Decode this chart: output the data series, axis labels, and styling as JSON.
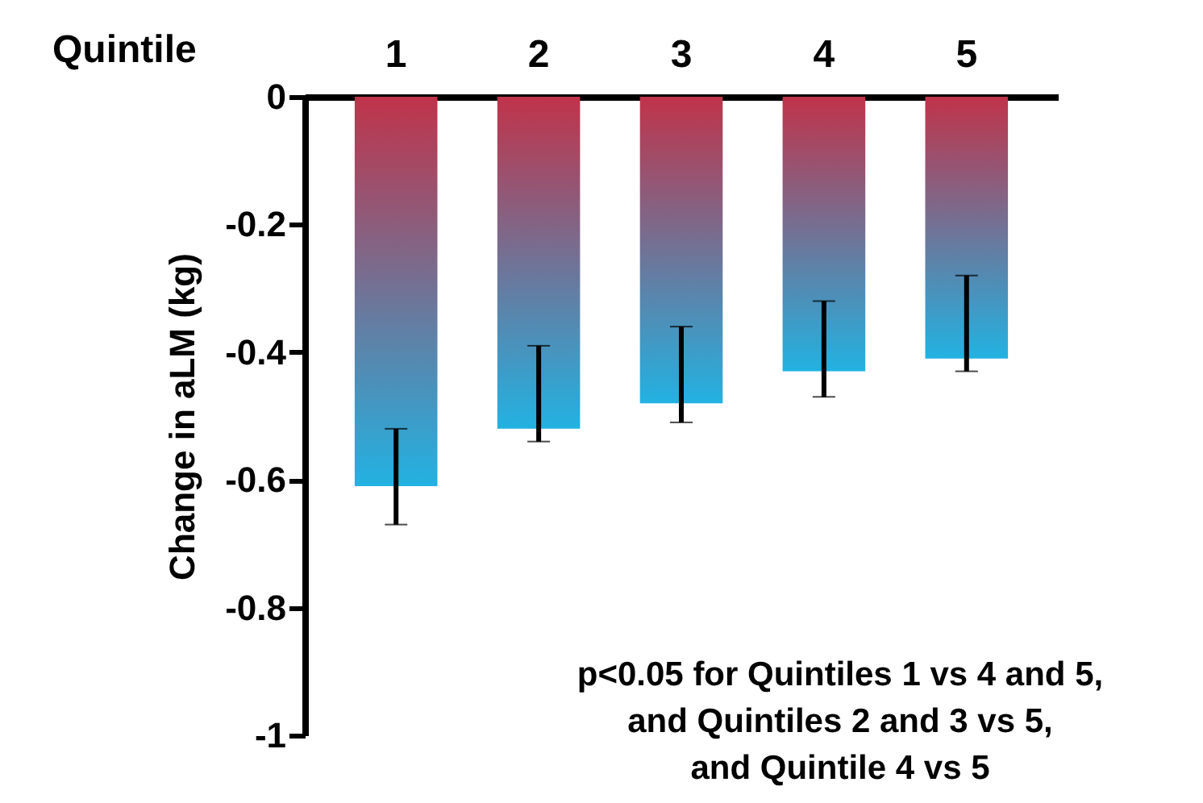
{
  "chart_data": {
    "type": "bar",
    "xlabel": "Quintile",
    "ylabel": "Change in aLM (kg)",
    "categories": [
      "1",
      "2",
      "3",
      "4",
      "5"
    ],
    "values": [
      -0.61,
      -0.52,
      -0.48,
      -0.43,
      -0.41
    ],
    "errors": [
      [
        -0.67,
        -0.52
      ],
      [
        -0.54,
        -0.39
      ],
      [
        -0.51,
        -0.36
      ],
      [
        -0.47,
        -0.32
      ],
      [
        -0.43,
        -0.28
      ]
    ],
    "color": "#c0334a",
    "ylim": [
      -1,
      0
    ],
    "yticks": [
      0,
      -0.2,
      -0.4,
      -0.6,
      -0.8,
      -1
    ],
    "grid": false,
    "annotations": [
      "p<0.05 for Quintiles 1 vs 4 and 5,\nand Quintiles 2 and 3 vs 5,\nand Quintile 4 vs 5"
    ]
  }
}
